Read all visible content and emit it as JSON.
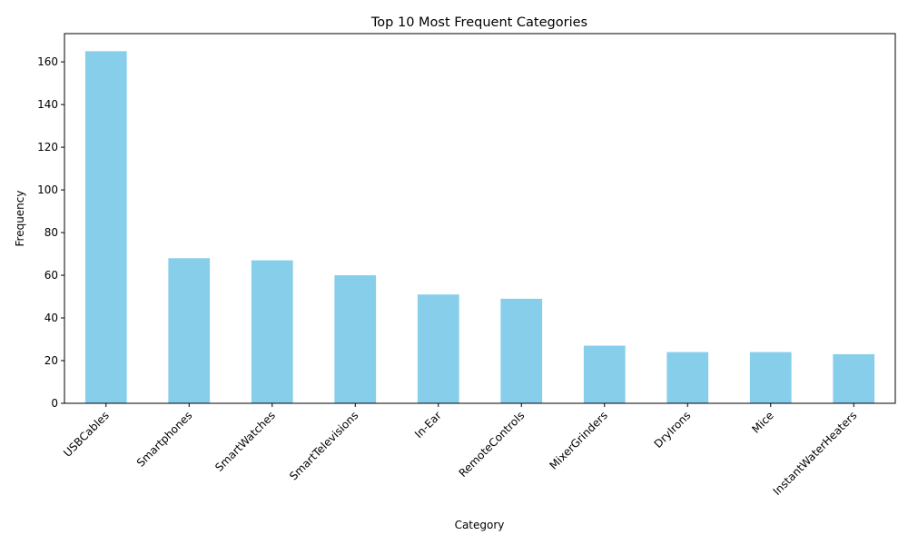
{
  "chart_data": {
    "type": "bar",
    "title": "Top 10 Most Frequent Categories",
    "xlabel": "Category",
    "ylabel": "Frequency",
    "categories": [
      "USBCables",
      "Smartphones",
      "SmartWatches",
      "SmartTelevisions",
      "In-Ear",
      "RemoteControls",
      "MixerGrinders",
      "DryIrons",
      "Mice",
      "InstantWaterHeaters"
    ],
    "values": [
      165,
      68,
      67,
      60,
      51,
      49,
      27,
      24,
      24,
      23
    ],
    "ylim": [
      0,
      173.25
    ],
    "yticks": [
      0,
      20,
      40,
      60,
      80,
      100,
      120,
      140,
      160
    ],
    "grid": false,
    "legend": "none",
    "bar_color": "#87ceeb"
  }
}
